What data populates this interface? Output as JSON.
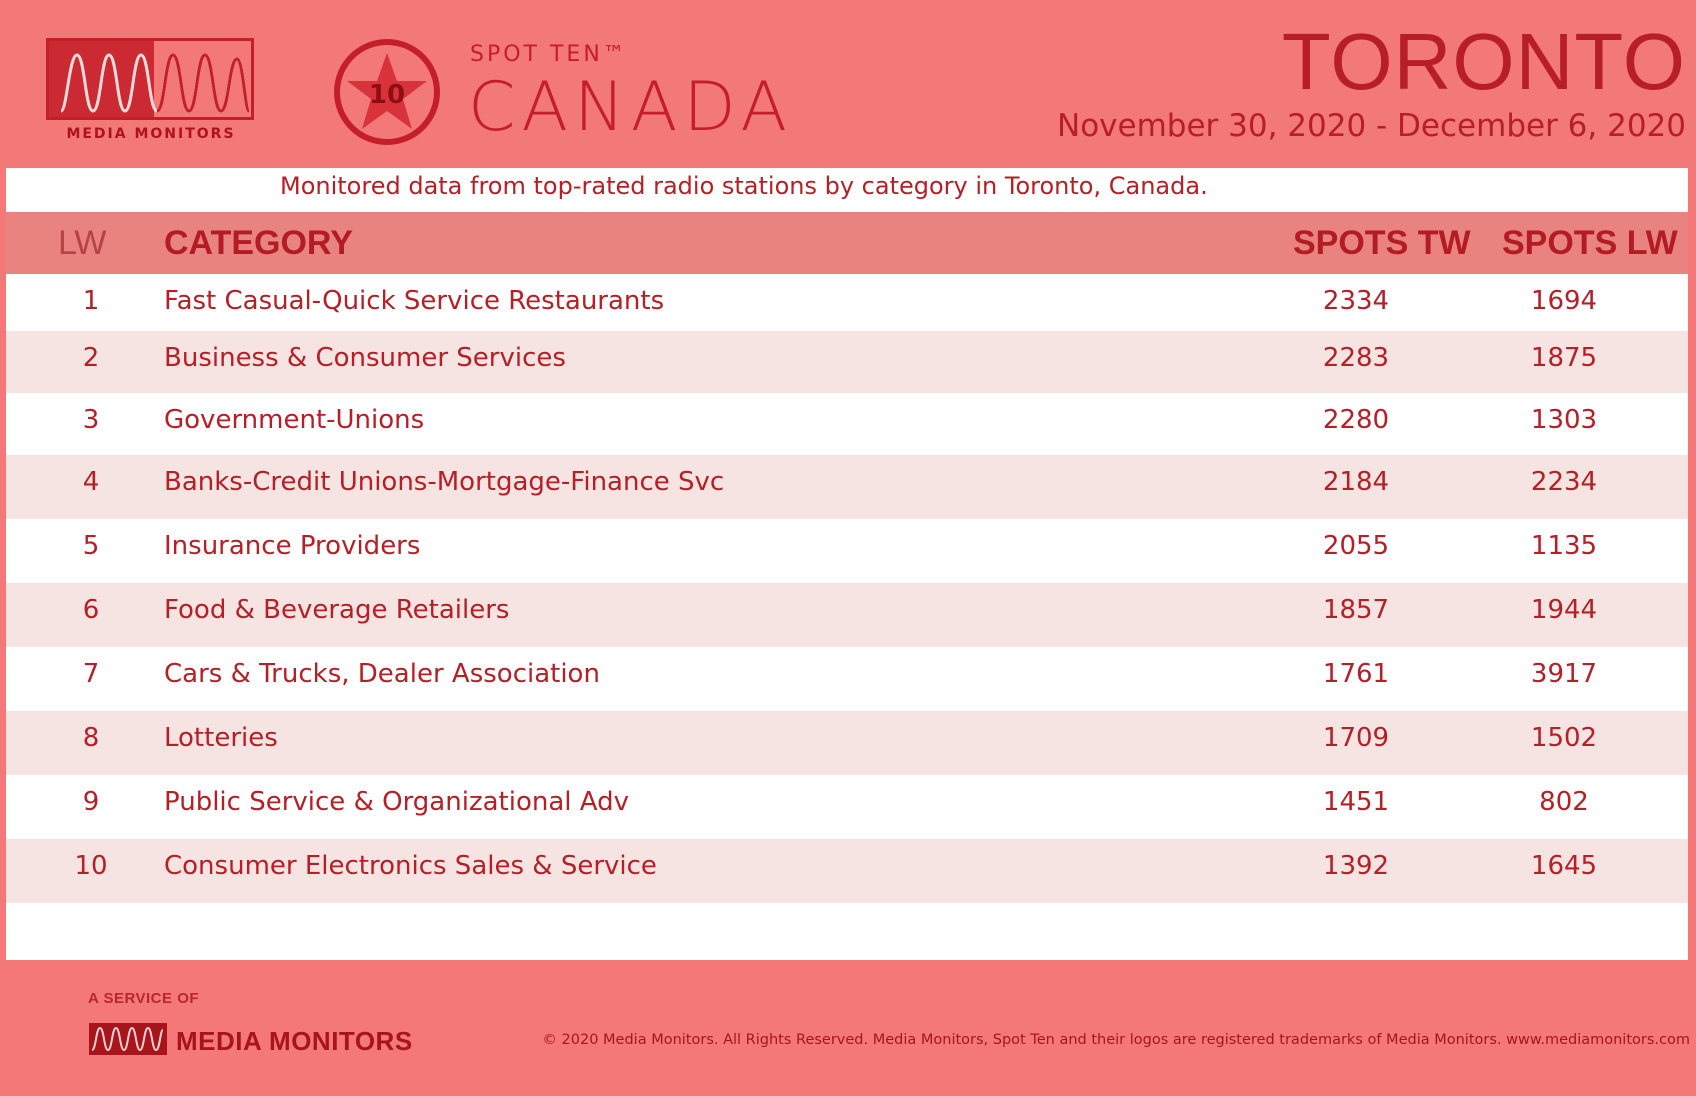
{
  "brand": {
    "logo_name": "MEDIA MONITORS",
    "product_small": "SPOT TEN™",
    "product_big": "CANADA",
    "badge_number": "10"
  },
  "header": {
    "city": "TORONTO",
    "date_range": "November 30, 2020 - December 6, 2020",
    "subtitle": "Monitored data from top-rated radio stations by category in Toronto, Canada."
  },
  "colors": {
    "background": "#f47878",
    "accent": "#b81e26",
    "header_row": "#e88380",
    "alt_row": "#f5e4e2"
  },
  "table": {
    "columns": [
      "LW",
      "CATEGORY",
      "SPOTS TW",
      "SPOTS LW"
    ],
    "rows": [
      {
        "lw": "1",
        "category": "Fast Casual-Quick Service Restaurants",
        "spots_tw": "2334",
        "spots_lw": "1694"
      },
      {
        "lw": "2",
        "category": "Business & Consumer Services",
        "spots_tw": "2283",
        "spots_lw": "1875"
      },
      {
        "lw": "3",
        "category": "Government-Unions",
        "spots_tw": "2280",
        "spots_lw": "1303"
      },
      {
        "lw": "4",
        "category": "Banks-Credit Unions-Mortgage-Finance Svc",
        "spots_tw": "2184",
        "spots_lw": "2234"
      },
      {
        "lw": "5",
        "category": "Insurance Providers",
        "spots_tw": "2055",
        "spots_lw": "1135"
      },
      {
        "lw": "6",
        "category": "Food & Beverage Retailers",
        "spots_tw": "1857",
        "spots_lw": "1944"
      },
      {
        "lw": "7",
        "category": "Cars & Trucks, Dealer Association",
        "spots_tw": "1761",
        "spots_lw": "3917"
      },
      {
        "lw": "8",
        "category": "Lotteries",
        "spots_tw": "1709",
        "spots_lw": "1502"
      },
      {
        "lw": "9",
        "category": "Public Service & Organizational Adv",
        "spots_tw": "1451",
        "spots_lw": "802"
      },
      {
        "lw": "10",
        "category": "Consumer Electronics Sales & Service",
        "spots_tw": "1392",
        "spots_lw": "1645"
      }
    ]
  },
  "footer": {
    "service_of": "A SERVICE OF",
    "company": "MEDIA MONITORS",
    "copyright": "© 2020 Media Monitors. All Rights Reserved. Media Monitors, Spot Ten and their logos are registered trademarks of Media Monitors. www.mediamonitors.com"
  }
}
